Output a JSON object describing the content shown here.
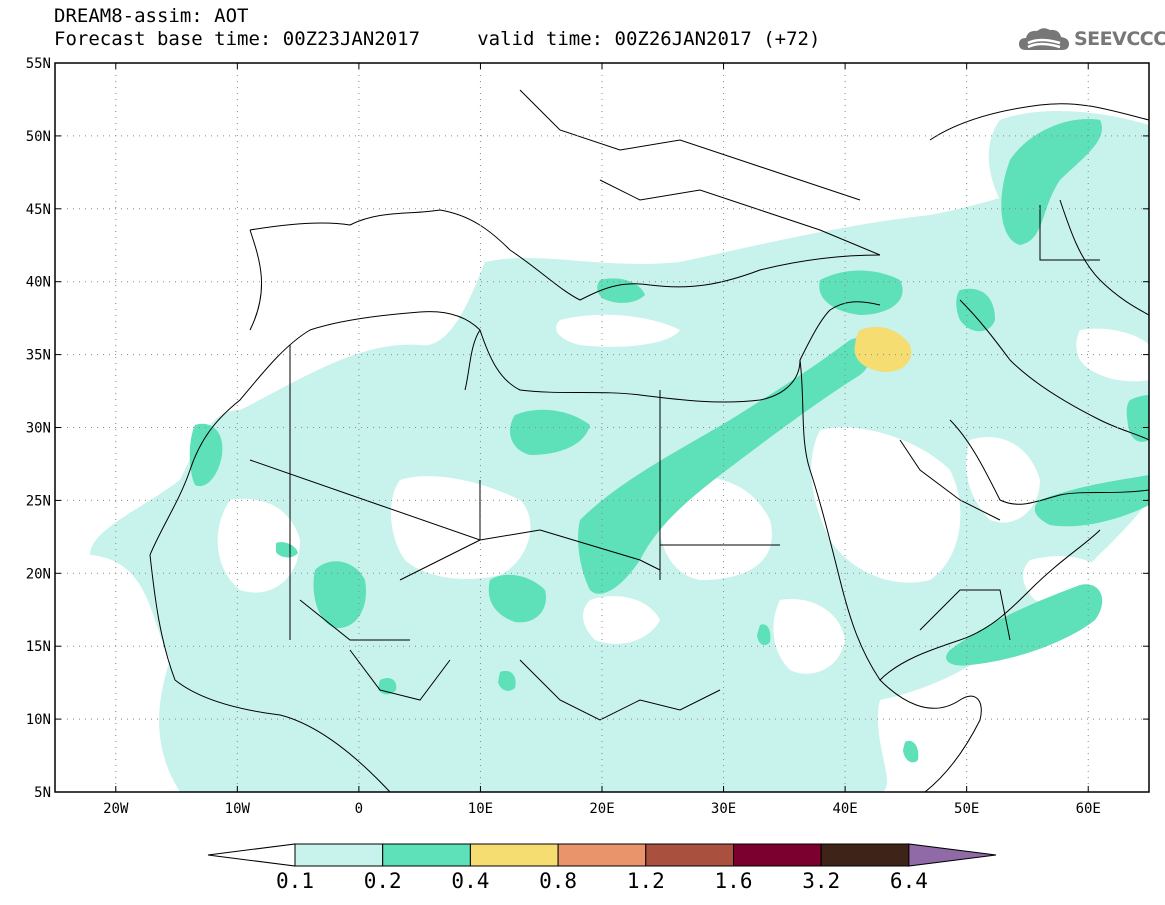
{
  "header": {
    "line1": "DREAM8-assim: AOT",
    "line2": "Forecast base time: 00Z23JAN2017     valid time: 00Z26JAN2017 (+72)"
  },
  "logo": {
    "text": "SEEVCCC",
    "icon": "cloud-icon",
    "color": "#777777"
  },
  "map": {
    "lon_range": [
      -25,
      65
    ],
    "lat_range": [
      5,
      55
    ],
    "lat_ticks": [
      {
        "value": 55,
        "label": "55N"
      },
      {
        "value": 50,
        "label": "50N"
      },
      {
        "value": 45,
        "label": "45N"
      },
      {
        "value": 40,
        "label": "40N"
      },
      {
        "value": 35,
        "label": "35N"
      },
      {
        "value": 30,
        "label": "30N"
      },
      {
        "value": 25,
        "label": "25N"
      },
      {
        "value": 20,
        "label": "20N"
      },
      {
        "value": 15,
        "label": "15N"
      },
      {
        "value": 10,
        "label": "10N"
      },
      {
        "value": 5,
        "label": "5N"
      }
    ],
    "lon_ticks": [
      {
        "value": -20,
        "label": "20W"
      },
      {
        "value": -10,
        "label": "10W"
      },
      {
        "value": 0,
        "label": "0"
      },
      {
        "value": 10,
        "label": "10E"
      },
      {
        "value": 20,
        "label": "20E"
      },
      {
        "value": 30,
        "label": "30E"
      },
      {
        "value": 40,
        "label": "40E"
      },
      {
        "value": 50,
        "label": "50E"
      },
      {
        "value": 60,
        "label": "60E"
      }
    ],
    "grid": "dotted",
    "fill_colors": {
      "level1": "#c8f2ec",
      "level2": "#5ee0b8",
      "level3": "#f5dd72"
    }
  },
  "colorbar": {
    "colors": [
      "#c8f2ec",
      "#5ee0b8",
      "#f5dd72",
      "#e9946a",
      "#a9503f",
      "#7b0030",
      "#3d2318"
    ],
    "under_color": "#ffffff",
    "over_color": "#8f6aa6",
    "labels": [
      "0.1",
      "0.2",
      "0.4",
      "0.8",
      "1.2",
      "1.6",
      "3.2",
      "6.4"
    ]
  }
}
